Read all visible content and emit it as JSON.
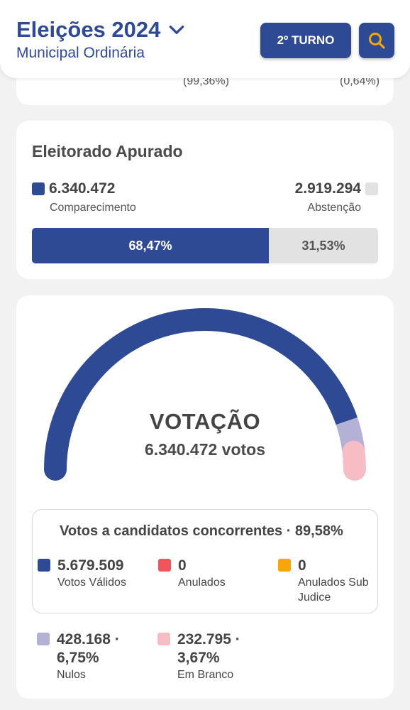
{
  "header": {
    "title": "Eleições 2024",
    "subtitle": "Municipal Ordinária",
    "turno_button": "2º TURNO",
    "search_icon": "search-icon"
  },
  "top_card": {
    "left_pct": "(99,36%)",
    "right_pct": "(0,64%)"
  },
  "eleitorado": {
    "title": "Eleitorado Apurado",
    "comparecimento_value": "6.340.472",
    "comparecimento_label": "Comparecimento",
    "abstencao_value": "2.919.294",
    "abstencao_label": "Abstenção",
    "comparecimento_pct": "68,47%",
    "abstencao_pct": "31,53%",
    "comparecimento_fraction": 0.6847
  },
  "votacao": {
    "title": "VOTAÇÃO",
    "votos": "6.340.472 votos",
    "gauge_fractions": {
      "validos": 0.8958,
      "nulos": 0.0675,
      "brancos": 0.0367
    },
    "candidatos_title": "Votos a candidatos concorrentes · 89,58%",
    "validos_value": "5.679.509",
    "validos_label": "Votos Válidos",
    "anulados_value": "0",
    "anulados_label": "Anulados",
    "subjudice_value": "0",
    "subjudice_label_1": "Anulados Sub",
    "subjudice_label_2": "Judice",
    "nulos_value_1": "428.168 ·",
    "nulos_value_2": "6,75%",
    "nulos_label": "Nulos",
    "brancos_value_1": "232.795 ·",
    "brancos_value_2": "3,67%",
    "brancos_label": "Em Branco"
  },
  "colors": {
    "primary": "#2f4a94",
    "abstencao": "#e2e2e2",
    "nulos": "#b3b1d6",
    "brancos": "#f7bcc4",
    "anulados": "#f2545b",
    "subjudice": "#f6a609",
    "accent_search": "#f6a609"
  }
}
